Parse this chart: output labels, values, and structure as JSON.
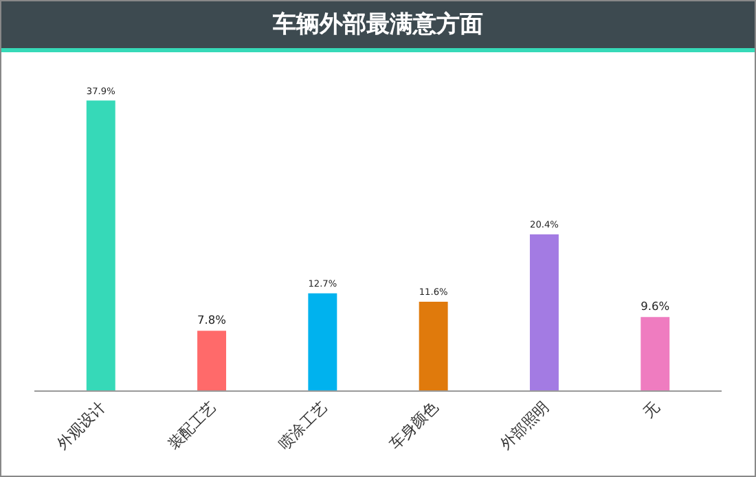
{
  "chart_data": {
    "type": "bar",
    "title": "车辆外部最满意方面",
    "categories": [
      "外观设计",
      "装配工艺",
      "喷涂工艺",
      "车身颜色",
      "外部照明",
      "无"
    ],
    "values": [
      37.9,
      7.8,
      12.7,
      11.6,
      20.4,
      9.6
    ],
    "colors": [
      "#36d9b8",
      "#ff6a6a",
      "#00b2ee",
      "#e07a0c",
      "#a37be3",
      "#ef7cc0"
    ],
    "value_labels": [
      "37.9%",
      "7.8%",
      "12.7%",
      "11.6%",
      "20.4%",
      "9.6%"
    ],
    "grid": false,
    "legend": false
  }
}
